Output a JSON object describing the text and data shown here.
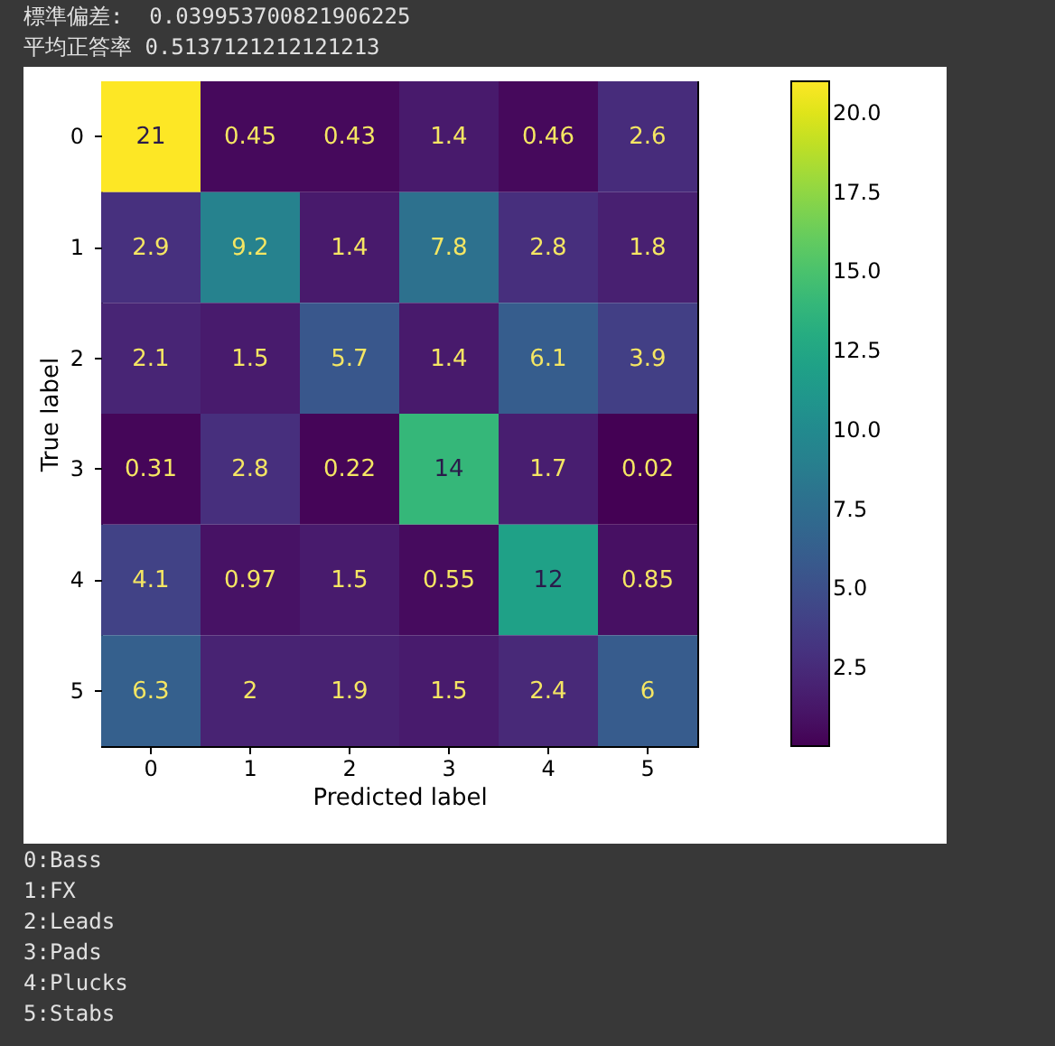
{
  "chart_data": {
    "type": "heatmap",
    "title": "標準偏差:  0.039953700821906225",
    "subtitle": "平均正答率 0.5137121212121213",
    "xlabel": "Predicted label",
    "ylabel": "True label",
    "categories": [
      "0",
      "1",
      "2",
      "3",
      "4",
      "5"
    ],
    "y_categories": [
      "0",
      "1",
      "2",
      "3",
      "4",
      "5"
    ],
    "cells": [
      [
        21,
        0.45,
        0.43,
        1.4,
        0.46,
        2.6
      ],
      [
        2.9,
        9.2,
        1.4,
        7.8,
        2.8,
        1.8
      ],
      [
        2.1,
        1.5,
        5.7,
        1.4,
        6.1,
        3.9
      ],
      [
        0.31,
        2.8,
        0.22,
        14,
        1.7,
        0.02
      ],
      [
        4.1,
        0.97,
        1.5,
        0.55,
        12,
        0.85
      ],
      [
        6.3,
        2,
        1.9,
        1.5,
        2.4,
        6
      ]
    ],
    "data_labels": true,
    "clim": [
      0.02,
      21
    ],
    "cticks": [
      {
        "value": 2.5,
        "label": "2.5"
      },
      {
        "value": 5,
        "label": "5.0"
      },
      {
        "value": 7.5,
        "label": "7.5"
      },
      {
        "value": 10,
        "label": "10.0"
      },
      {
        "value": 12.5,
        "label": "12.5"
      },
      {
        "value": 15,
        "label": "15.0"
      },
      {
        "value": 17.5,
        "label": "17.5"
      },
      {
        "value": 20,
        "label": "20.0"
      }
    ],
    "annotations": [
      "0:Bass",
      "1:FX",
      "2:Leads",
      "3:Pads",
      "4:Plucks",
      "5:Stabs"
    ]
  }
}
